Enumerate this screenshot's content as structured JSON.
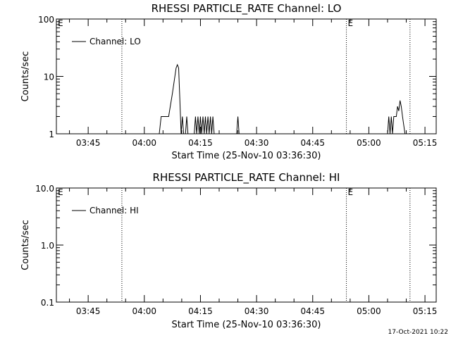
{
  "footer": {
    "timestamp": "17-Oct-2021 10:22"
  },
  "chart_data": [
    {
      "type": "line",
      "title": "RHESSI PARTICLE_RATE Channel: LO",
      "xlabel": "Start Time (25-Nov-10 03:36:30)",
      "ylabel": "Counts/sec",
      "y_scale": "log",
      "xlim": [
        "03:36:30",
        "05:18:00"
      ],
      "ylim": [
        1,
        100
      ],
      "x_ticks": [
        "03:45",
        "04:00",
        "04:15",
        "04:30",
        "04:45",
        "05:00",
        "05:15"
      ],
      "y_ticks": [
        "1",
        "10",
        "100"
      ],
      "legend": {
        "position": "top-left",
        "entries": [
          "Channel: LO"
        ]
      },
      "event_lines": [
        "03:54:00",
        "04:54:00",
        "05:11:00"
      ],
      "event_markers": [
        {
          "label": "E",
          "x": "03:36:30"
        },
        {
          "label": "E",
          "x": "04:54:00"
        }
      ],
      "series": [
        {
          "name": "Channel: LO",
          "points": [
            [
              "04:04:00",
              1.0
            ],
            [
              "04:04:30",
              2.0
            ],
            [
              "04:06:30",
              2.0
            ],
            [
              "04:07:30",
              5.0
            ],
            [
              "04:08:30",
              14.0
            ],
            [
              "04:08:50",
              16.0
            ],
            [
              "04:09:10",
              14.0
            ],
            [
              "04:09:30",
              4.0
            ],
            [
              "04:09:50",
              1.0
            ],
            [
              "04:10:10",
              2.0
            ],
            [
              "04:10:30",
              1.0
            ],
            [
              "04:11:00",
              1.0
            ],
            [
              "04:11:20",
              2.0
            ],
            [
              "04:11:40",
              1.0
            ],
            [
              "04:13:20",
              1.0
            ],
            [
              "04:13:40",
              2.0
            ],
            [
              "04:14:00",
              1.0
            ],
            [
              "04:14:20",
              2.0
            ],
            [
              "04:14:40",
              1.0
            ],
            [
              "04:15:00",
              2.0
            ],
            [
              "04:15:20",
              1.0
            ],
            [
              "04:15:40",
              2.0
            ],
            [
              "04:16:00",
              1.0
            ],
            [
              "04:16:20",
              2.0
            ],
            [
              "04:16:40",
              1.0
            ],
            [
              "04:17:00",
              2.0
            ],
            [
              "04:17:20",
              1.0
            ],
            [
              "04:17:40",
              2.0
            ],
            [
              "04:18:00",
              1.0
            ],
            [
              "04:18:20",
              2.0
            ],
            [
              "04:18:40",
              1.0
            ],
            [
              "04:24:40",
              1.0
            ],
            [
              "04:25:00",
              2.0
            ],
            [
              "04:25:20",
              1.0
            ],
            [
              "05:05:00",
              1.0
            ],
            [
              "05:05:20",
              2.0
            ],
            [
              "05:05:40",
              1.0
            ],
            [
              "05:06:00",
              2.0
            ],
            [
              "05:06:20",
              1.0
            ],
            [
              "05:06:40",
              2.0
            ],
            [
              "05:07:20",
              2.0
            ],
            [
              "05:07:40",
              3.0
            ],
            [
              "05:08:00",
              2.5
            ],
            [
              "05:08:20",
              3.8
            ],
            [
              "05:08:40",
              3.0
            ],
            [
              "05:09:00",
              2.0
            ],
            [
              "05:09:40",
              1.0
            ]
          ]
        }
      ]
    },
    {
      "type": "line",
      "title": "RHESSI PARTICLE_RATE Channel: HI",
      "xlabel": "Start Time (25-Nov-10 03:36:30)",
      "ylabel": "Counts/sec",
      "y_scale": "log",
      "xlim": [
        "03:36:30",
        "05:18:00"
      ],
      "ylim": [
        0.1,
        10.0
      ],
      "x_ticks": [
        "03:45",
        "04:00",
        "04:15",
        "04:30",
        "04:45",
        "05:00",
        "05:15"
      ],
      "y_ticks": [
        "0.1",
        "1.0",
        "10.0"
      ],
      "legend": {
        "position": "top-left",
        "entries": [
          "Channel: HI"
        ]
      },
      "event_lines": [
        "03:54:00",
        "04:54:00",
        "05:11:00"
      ],
      "event_markers": [
        {
          "label": "E",
          "x": "03:36:30"
        },
        {
          "label": "E",
          "x": "04:54:00"
        }
      ],
      "series": [
        {
          "name": "Channel: HI",
          "points": []
        }
      ]
    }
  ]
}
